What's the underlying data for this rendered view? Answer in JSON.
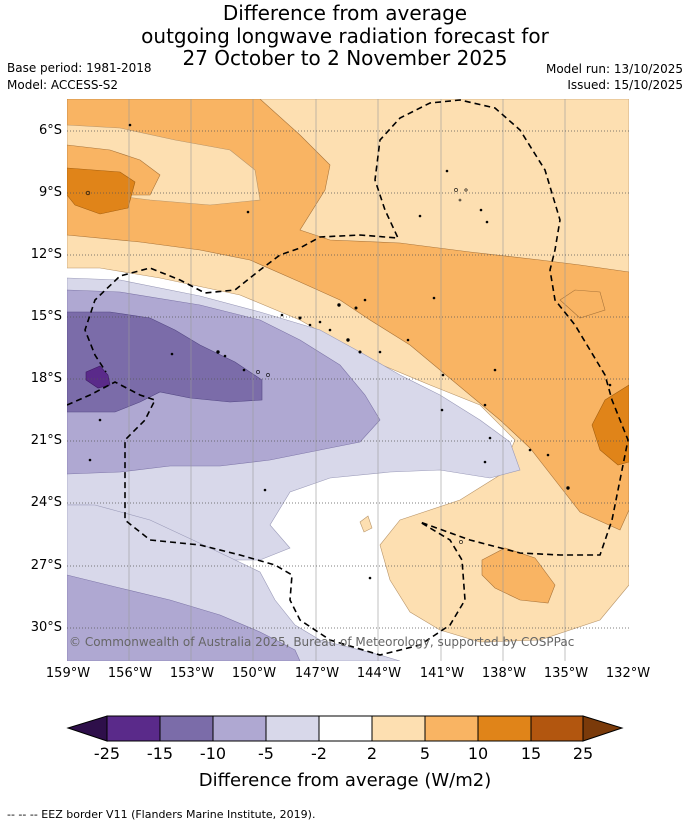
{
  "title": {
    "line1": "Difference from average",
    "line2": "outgoing longwave radiation forecast for",
    "line3": "27 October to 2 November 2025"
  },
  "meta": {
    "base_period": "Base period: 1981-2018",
    "model": "Model: ACCESS-S2",
    "model_run": "Model run: 13/10/2025",
    "issued": "Issued: 15/10/2025"
  },
  "map": {
    "copyright": "© Commonwealth of Australia 2025, Bureau of Meteorology, supported by COSPPac",
    "lat_labels": [
      "6°S",
      "9°S",
      "12°S",
      "15°S",
      "18°S",
      "21°S",
      "24°S",
      "27°S",
      "30°S"
    ],
    "lon_labels": [
      "159°W",
      "156°W",
      "153°W",
      "150°W",
      "147°W",
      "144°W",
      "141°W",
      "138°W",
      "135°W",
      "132°W"
    ],
    "extent": {
      "lon_min": -159,
      "lon_max": -132,
      "lat_min": -31.5,
      "lat_max": -4.5
    }
  },
  "colorbar": {
    "ticks": [
      "-25",
      "-15",
      "-10",
      "-5",
      "-2",
      "2",
      "5",
      "10",
      "15",
      "25"
    ],
    "colors": [
      "#2e0f4a",
      "#5a2a8a",
      "#7b6ca9",
      "#afa8d2",
      "#d8d8ea",
      "#ffffff",
      "#fddfb1",
      "#f9b463",
      "#e08419",
      "#b2560f",
      "#7a3a0a"
    ],
    "label": "Difference from average (W/m2)"
  },
  "footer": "--  --  -- EEZ border V11 (Flanders Marine Institute, 2019)."
}
